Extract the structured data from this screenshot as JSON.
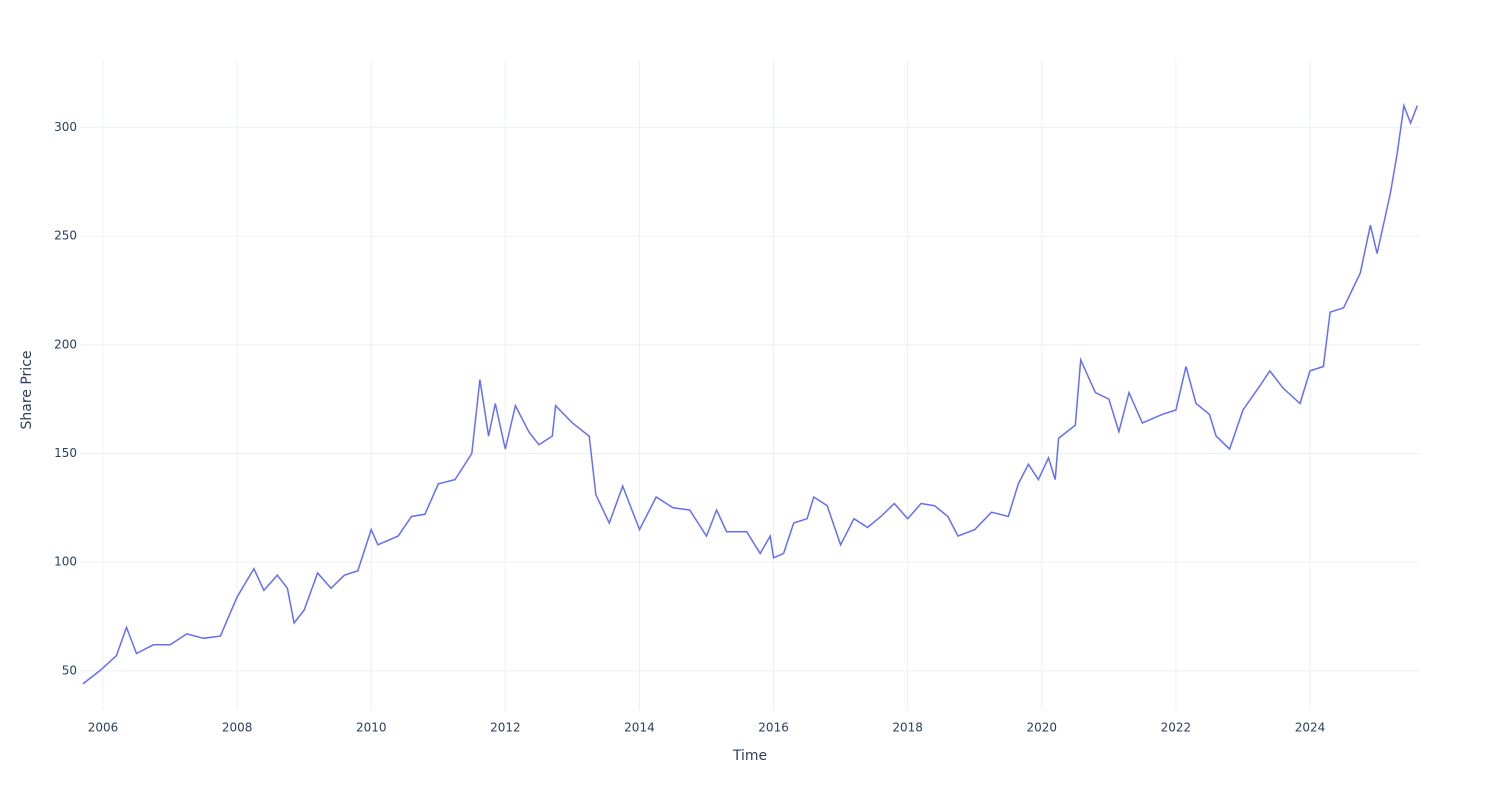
{
  "chart_data": {
    "type": "line",
    "x_label": "Time",
    "y_label": "Share Price",
    "xlim": [
      2005.657,
      2025.64
    ],
    "xticks": [
      2006,
      2008,
      2010,
      2012,
      2014,
      2016,
      2018,
      2020,
      2022,
      2024
    ],
    "ylim": [
      32,
      331
    ],
    "yticks": [
      50,
      100,
      150,
      200,
      250,
      300
    ],
    "grid": true,
    "series": [
      {
        "name": "Share Price",
        "color": "#636efa",
        "x": [
          2005.7,
          2005.95,
          2006.2,
          2006.35,
          2006.5,
          2006.75,
          2007.0,
          2007.25,
          2007.5,
          2007.75,
          2008.0,
          2008.25,
          2008.4,
          2008.6,
          2008.75,
          2008.85,
          2009.0,
          2009.2,
          2009.4,
          2009.6,
          2009.8,
          2010.0,
          2010.1,
          2010.4,
          2010.6,
          2010.8,
          2011.0,
          2011.25,
          2011.5,
          2011.62,
          2011.75,
          2011.85,
          2012.0,
          2012.15,
          2012.35,
          2012.5,
          2012.7,
          2012.75,
          2013.0,
          2013.25,
          2013.35,
          2013.55,
          2013.75,
          2014.0,
          2014.25,
          2014.5,
          2014.75,
          2015.0,
          2015.15,
          2015.3,
          2015.6,
          2015.8,
          2015.95,
          2016.0,
          2016.15,
          2016.3,
          2016.5,
          2016.6,
          2016.8,
          2017.0,
          2017.2,
          2017.4,
          2017.6,
          2017.8,
          2018.0,
          2018.2,
          2018.4,
          2018.6,
          2018.75,
          2019.0,
          2019.25,
          2019.5,
          2019.65,
          2019.8,
          2019.95,
          2020.1,
          2020.2,
          2020.25,
          2020.5,
          2020.58,
          2020.8,
          2021.0,
          2021.15,
          2021.3,
          2021.5,
          2021.8,
          2022.0,
          2022.15,
          2022.3,
          2022.5,
          2022.6,
          2022.8,
          2023.0,
          2023.25,
          2023.4,
          2023.6,
          2023.85,
          2024.0,
          2024.2,
          2024.3,
          2024.5,
          2024.75,
          2024.9,
          2025.0,
          2025.2,
          2025.3,
          2025.4,
          2025.5,
          2025.6
        ],
        "values": [
          44,
          50,
          57,
          70,
          58,
          62,
          62,
          67,
          65,
          66,
          84,
          97,
          87,
          94,
          88,
          72,
          78,
          95,
          88,
          94,
          96,
          115,
          108,
          112,
          121,
          122,
          136,
          138,
          150,
          184,
          158,
          173,
          152,
          172,
          160,
          154,
          158,
          172,
          164,
          158,
          131,
          118,
          135,
          115,
          130,
          125,
          124,
          112,
          124,
          114,
          114,
          104,
          112,
          102,
          104,
          118,
          120,
          130,
          126,
          108,
          120,
          116,
          121,
          127,
          120,
          127,
          126,
          121,
          112,
          115,
          123,
          121,
          136,
          145,
          138,
          148,
          138,
          157,
          163,
          193,
          178,
          175,
          160,
          178,
          164,
          168,
          170,
          190,
          173,
          168,
          158,
          152,
          170,
          181,
          188,
          180,
          173,
          188,
          190,
          215,
          217,
          233,
          255,
          242,
          270,
          288,
          310,
          302,
          310
        ]
      }
    ]
  }
}
